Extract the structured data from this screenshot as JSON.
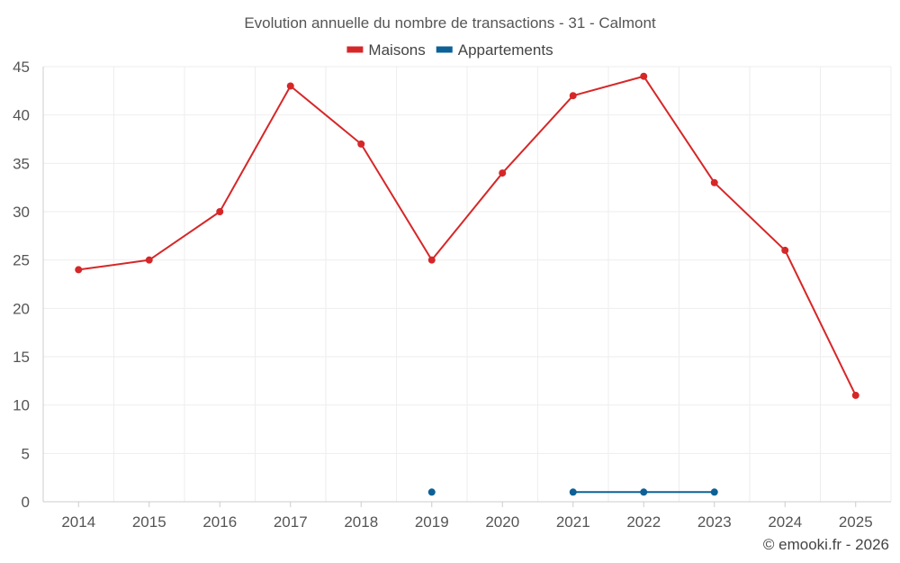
{
  "chart_data": {
    "type": "line",
    "title": "Evolution annuelle du nombre de transactions - 31 - Calmont",
    "xlabel": "",
    "ylabel": "",
    "categories": [
      "2014",
      "2015",
      "2016",
      "2017",
      "2018",
      "2019",
      "2020",
      "2021",
      "2022",
      "2023",
      "2024",
      "2025"
    ],
    "ylim": [
      0,
      45
    ],
    "yticks": [
      0,
      5,
      10,
      15,
      20,
      25,
      30,
      35,
      40,
      45
    ],
    "grid": true,
    "legend_position": "top-center",
    "series": [
      {
        "name": "Maisons",
        "color": "#d62728",
        "values": [
          24,
          25,
          30,
          43,
          37,
          25,
          34,
          42,
          44,
          33,
          26,
          11
        ]
      },
      {
        "name": "Appartements",
        "color": "#0d6197",
        "values": [
          null,
          null,
          null,
          null,
          null,
          1,
          null,
          1,
          1,
          1,
          null,
          null
        ]
      }
    ]
  },
  "credit": "© emooki.fr - 2026"
}
